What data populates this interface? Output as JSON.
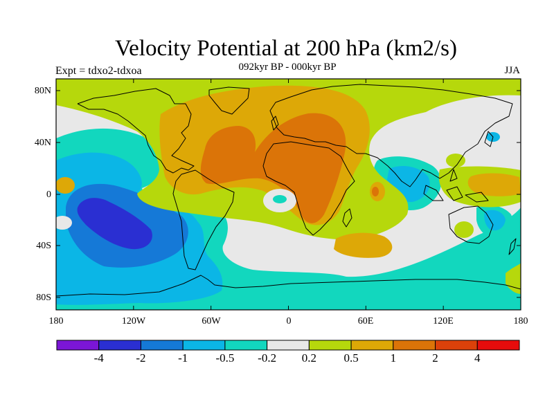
{
  "title": "Velocity Potential at 200 hPa (km2/s)",
  "subtitle": "092kyr BP - 000kyr BP",
  "left_label": "Expt = tdxo2-tdxoa",
  "right_label": "JJA",
  "lat_labels": [
    "80N",
    "40N",
    "0",
    "40S",
    "80S"
  ],
  "lon_labels": [
    "180",
    "120W",
    "60W",
    "0",
    "60E",
    "120E",
    "180"
  ],
  "colorbar": {
    "colors": [
      "#7B16D6",
      "#2A2FD2",
      "#1579D7",
      "#0BB6E6",
      "#12D7BE",
      "#E8E8E8",
      "#B6D80C",
      "#DDA807",
      "#DB7408",
      "#DC410A",
      "#E60C0C"
    ],
    "labels": [
      "-4",
      "-2",
      "-1",
      "-0.5",
      "-0.2",
      "0.2",
      "0.5",
      "1",
      "2",
      "4"
    ]
  }
}
